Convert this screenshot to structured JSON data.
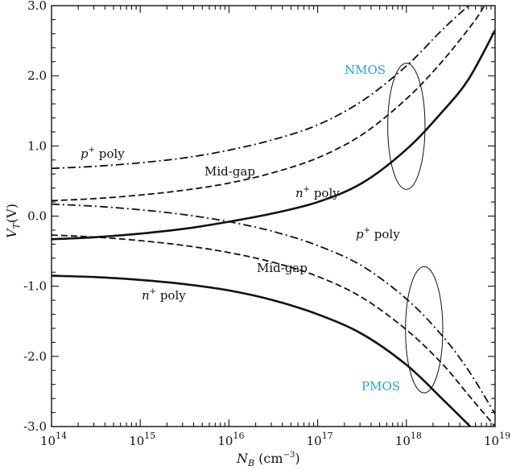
{
  "chart_data": {
    "type": "line",
    "title": "",
    "xlabel": {
      "main": "N",
      "sub": "B",
      "unit": " (cm",
      "unit_sup": "−3",
      "unit_end": ")"
    },
    "ylabel": {
      "main": "V",
      "sub": "T",
      "unit": "(V)"
    },
    "x_scale": "log10",
    "xlim_exp": [
      14,
      19
    ],
    "ylim": [
      -3.0,
      3.0
    ],
    "x_ticks": [
      {
        "base": "10",
        "exp": "14"
      },
      {
        "base": "10",
        "exp": "15"
      },
      {
        "base": "10",
        "exp": "16"
      },
      {
        "base": "10",
        "exp": "17"
      },
      {
        "base": "10",
        "exp": "18"
      },
      {
        "base": "10",
        "exp": "19"
      }
    ],
    "y_ticks": [
      "3.0",
      "2.0",
      "1.0",
      "0.0",
      "-1.0",
      "-2.0",
      "-3.0"
    ],
    "group_color": "#1ba9d8",
    "groups": [
      {
        "name": "NMOS",
        "ellipse_center": [
          18.0,
          1.28
        ],
        "ellipse_radii": [
          0.21,
          0.9
        ]
      },
      {
        "name": "PMOS",
        "ellipse_center": [
          18.2,
          -1.62
        ],
        "ellipse_radii": [
          0.21,
          0.9
        ]
      }
    ],
    "series": [
      {
        "name": "NMOS p+ poly",
        "group": "NMOS",
        "style": "dashdot",
        "label": {
          "italic": "p",
          "sup": "+",
          "text": " poly"
        },
        "x_log": [
          14.0,
          14.5,
          15.0,
          15.5,
          16.0,
          16.5,
          17.0,
          17.5,
          18.0,
          18.4,
          18.7
        ],
        "y": [
          0.68,
          0.71,
          0.76,
          0.83,
          0.94,
          1.09,
          1.3,
          1.64,
          2.14,
          2.65,
          3.0
        ]
      },
      {
        "name": "NMOS Mid-gap",
        "group": "NMOS",
        "style": "dashed",
        "label": {
          "italic": "",
          "sup": "",
          "text": "Mid-gap"
        },
        "x_log": [
          14.0,
          14.5,
          15.0,
          15.5,
          16.0,
          16.5,
          17.0,
          17.5,
          18.0,
          18.4,
          18.75,
          18.88
        ],
        "y": [
          0.22,
          0.25,
          0.3,
          0.37,
          0.47,
          0.62,
          0.83,
          1.16,
          1.67,
          2.2,
          2.75,
          3.0
        ]
      },
      {
        "name": "NMOS n+ poly",
        "group": "NMOS",
        "style": "solid",
        "label": {
          "italic": "n",
          "sup": "+",
          "text": " poly"
        },
        "x_log": [
          14.0,
          14.5,
          15.0,
          15.5,
          16.0,
          16.5,
          17.0,
          17.5,
          18.0,
          18.4,
          18.7,
          19.0
        ],
        "y": [
          -0.33,
          -0.3,
          -0.25,
          -0.18,
          -0.08,
          0.04,
          0.2,
          0.47,
          0.95,
          1.48,
          1.95,
          2.65
        ]
      },
      {
        "name": "PMOS p+ poly",
        "group": "PMOS",
        "style": "dashdot",
        "label": {
          "italic": "p",
          "sup": "+",
          "text": " poly"
        },
        "x_log": [
          14.0,
          14.5,
          15.0,
          15.5,
          16.0,
          16.5,
          17.0,
          17.5,
          18.0,
          18.4,
          18.7,
          19.0
        ],
        "y": [
          0.17,
          0.14,
          0.09,
          0.02,
          -0.08,
          -0.22,
          -0.42,
          -0.71,
          -1.18,
          -1.7,
          -2.2,
          -2.82
        ]
      },
      {
        "name": "PMOS Mid-gap",
        "group": "PMOS",
        "style": "dashed",
        "label": {
          "italic": "",
          "sup": "",
          "text": "Mid-gap"
        },
        "x_log": [
          14.0,
          14.5,
          15.0,
          15.5,
          16.0,
          16.5,
          17.0,
          17.5,
          18.0,
          18.4,
          18.7,
          19.0
        ],
        "y": [
          -0.27,
          -0.3,
          -0.35,
          -0.42,
          -0.52,
          -0.66,
          -0.86,
          -1.16,
          -1.62,
          -2.1,
          -2.55,
          -3.0
        ]
      },
      {
        "name": "PMOS n+ poly",
        "group": "PMOS",
        "style": "solid",
        "label": {
          "italic": "n",
          "sup": "+",
          "text": " poly"
        },
        "x_log": [
          14.0,
          14.5,
          15.0,
          15.5,
          16.0,
          16.5,
          17.0,
          17.5,
          18.0,
          18.4,
          18.72
        ],
        "y": [
          -0.85,
          -0.87,
          -0.91,
          -0.97,
          -1.06,
          -1.2,
          -1.4,
          -1.68,
          -2.12,
          -2.6,
          -3.0
        ]
      }
    ]
  }
}
